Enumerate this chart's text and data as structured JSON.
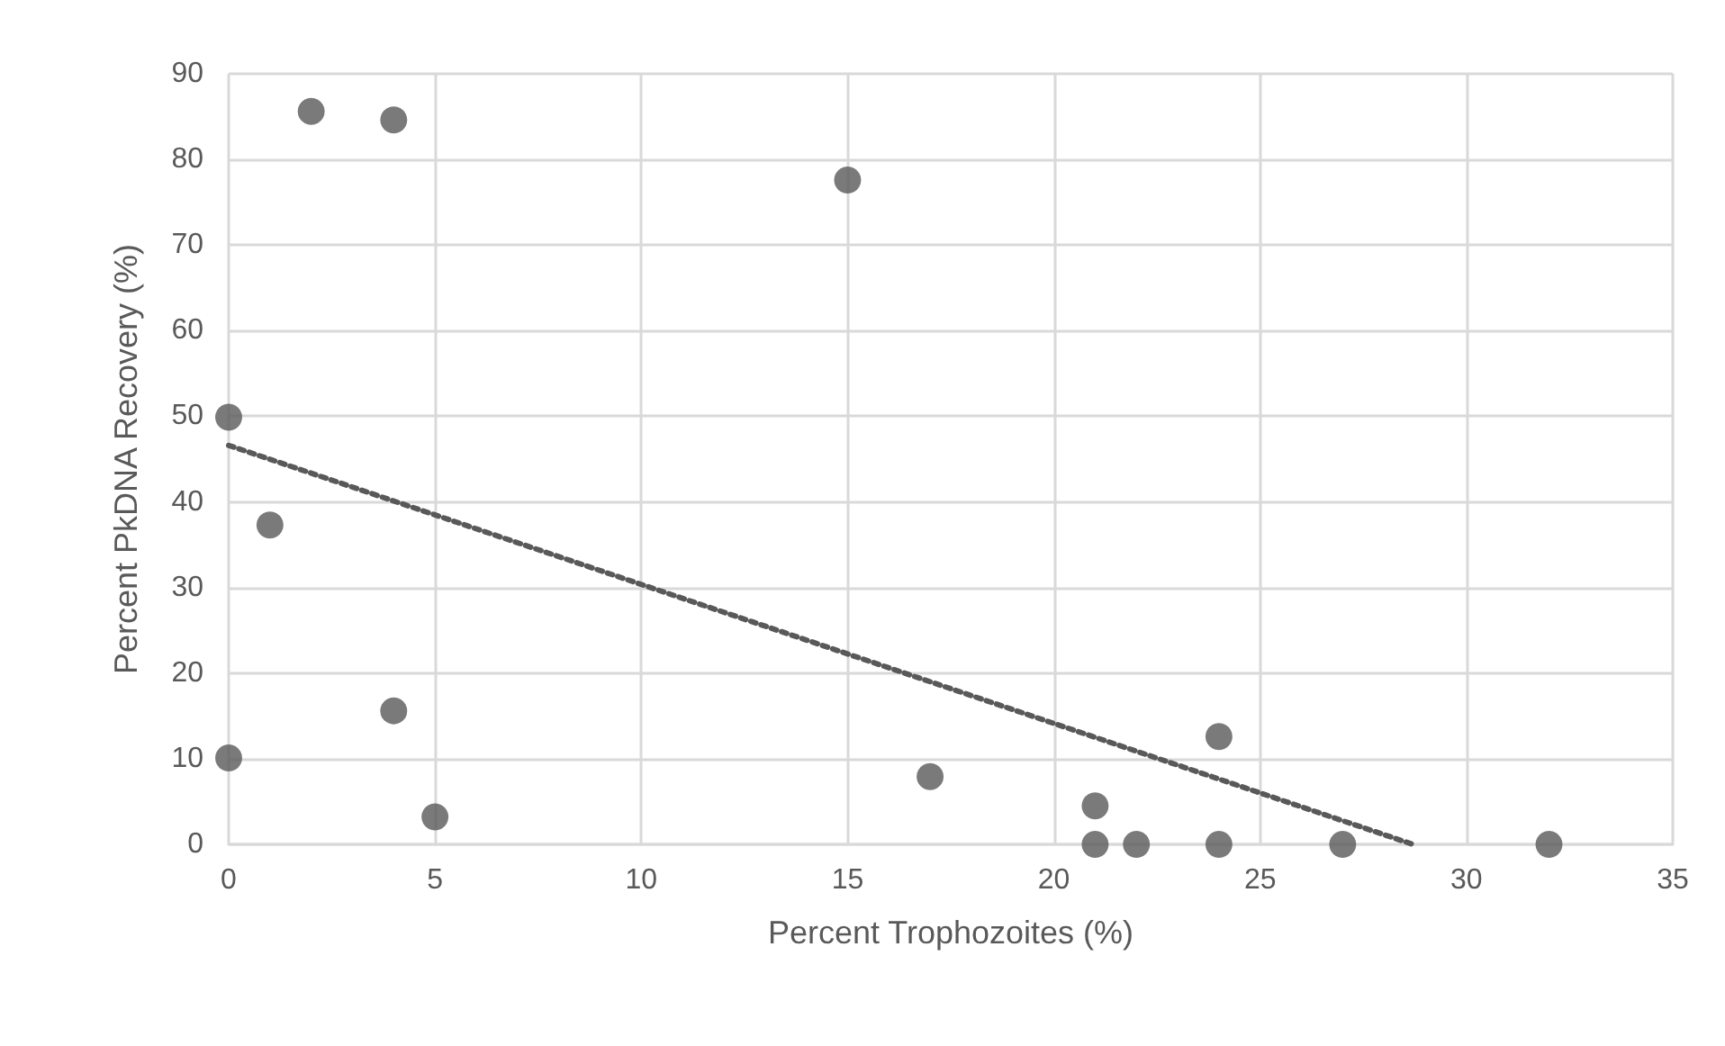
{
  "chart_data": {
    "type": "scatter",
    "xlabel": "Percent Trophozoites (%)",
    "ylabel": "Percent PkDNA Recovery (%)",
    "xlim": [
      0,
      35
    ],
    "xticks": [
      0,
      5,
      10,
      15,
      20,
      25,
      30,
      35
    ],
    "ylim": [
      0,
      90
    ],
    "yticks": [
      0,
      10,
      20,
      30,
      40,
      50,
      60,
      70,
      80,
      90
    ],
    "grid": true,
    "marker": "circle",
    "series": [
      {
        "color": "#595959",
        "x": [
          2,
          4,
          15,
          0,
          1,
          4,
          0,
          5,
          17,
          21,
          24,
          21,
          22,
          24,
          27,
          32
        ],
        "values": [
          85.6,
          84.6,
          77.6,
          49.9,
          37.3,
          15.6,
          10.1,
          3.2,
          7.9,
          4.5,
          12.6,
          0,
          0,
          0,
          0,
          0
        ]
      },
      {
        "type": "line",
        "color": "#595959",
        "line_style": "dotted",
        "marker": "none",
        "x": [
          0,
          28.7
        ],
        "values": [
          46.6,
          0
        ]
      }
    ]
  }
}
